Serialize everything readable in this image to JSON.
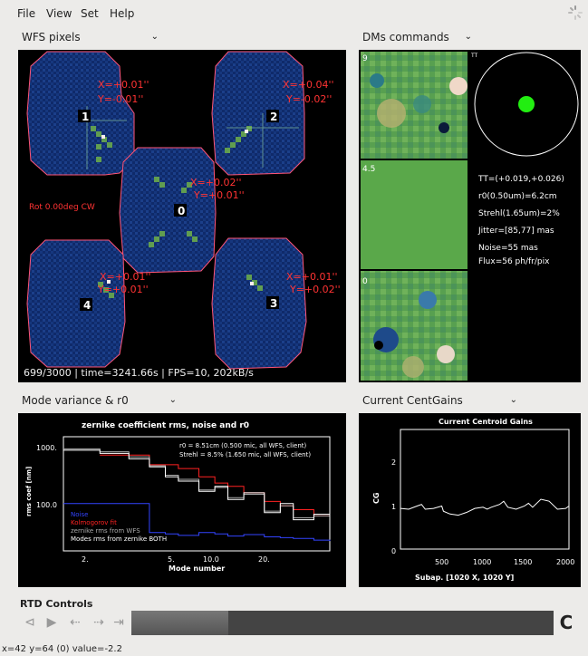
{
  "menu": [
    "File",
    "View",
    "Set",
    "Help"
  ],
  "wfs": {
    "combo": "WFS pixels",
    "spots": [
      {
        "id": "0",
        "x": "X=+0.02''",
        "y": "Y=+0.01''"
      },
      {
        "id": "1",
        "x": "X=+0.01''",
        "y": "Y=-0.01''"
      },
      {
        "id": "2",
        "x": "X=+0.04''",
        "y": "Y=-0.02''"
      },
      {
        "id": "3",
        "x": "X=+0.01''",
        "y": "Y=+0.02''"
      },
      {
        "id": "4",
        "x": "X=+0.01''",
        "y": "Y=+0.01''"
      }
    ],
    "rot": "Rot 0.00deg CW",
    "footer": "699/3000 | time=3241.66s | FPS=10, 202kB/s"
  },
  "dm": {
    "combo": "DMs commands",
    "labels": [
      "9",
      "4.5",
      "0"
    ],
    "tt_label": "TT",
    "stats": [
      "TT=(+0.019,+0.026)",
      "r0(0.50um)=6.2cm",
      "Strehl(1.65um)=2%",
      "Jitter=[85,77] mas",
      "Noise=55 mas",
      "Flux=56 ph/fr/pix"
    ]
  },
  "mode": {
    "combo": "Mode variance & r0",
    "chart_data": {
      "type": "line",
      "title": "zernike coefficient rms, noise and r0",
      "xlabel": "Mode number",
      "ylabel": "rms coef [nm]",
      "x_scale": "log",
      "y_scale": "log",
      "xlim": [
        1.2,
        50
      ],
      "ylim": [
        20,
        1500
      ],
      "xticks": [
        "2.",
        "5.",
        "10.0",
        "20."
      ],
      "yticks": [
        "1000.",
        "100.0"
      ],
      "annotations": [
        "r0 = 8.51cm (0.500 mic, all WFS, client)",
        "Strehl = 8.5% (1.650 mic, all WFS, client)"
      ],
      "legend_placement": "bottom-left",
      "series": [
        {
          "name": "Noise",
          "color": "#3344ff",
          "x": [
            1,
            2,
            3,
            4,
            5,
            6,
            8,
            10,
            12,
            15,
            20,
            25,
            30,
            40,
            50
          ],
          "values": [
            120,
            120,
            120,
            40,
            38,
            36,
            40,
            38,
            35,
            37,
            34,
            33,
            32,
            30,
            29
          ]
        },
        {
          "name": "Kolmogorov fit",
          "color": "#ff2222",
          "x": [
            2,
            3,
            4,
            5,
            6,
            8,
            10,
            12,
            15,
            20,
            25,
            30,
            40,
            50
          ],
          "values": [
            750,
            750,
            520,
            520,
            450,
            330,
            260,
            230,
            180,
            130,
            110,
            95,
            75,
            65
          ]
        },
        {
          "name": "zernike rms from WFS",
          "color": "#aaaaaa",
          "x": [
            1,
            2,
            3,
            4,
            5,
            6,
            8,
            10,
            12,
            15,
            20,
            25,
            30,
            40,
            50
          ],
          "values": [
            950,
            850,
            700,
            500,
            350,
            300,
            200,
            220,
            150,
            170,
            90,
            110,
            70,
            75,
            60
          ]
        },
        {
          "name": "Modes rms from zernike BOTH",
          "color": "#ffffff",
          "x": [
            1,
            2,
            3,
            4,
            5,
            6,
            8,
            10,
            12,
            15,
            20,
            25,
            30,
            40,
            50
          ],
          "values": [
            900,
            800,
            650,
            480,
            330,
            280,
            190,
            230,
            140,
            180,
            85,
            120,
            65,
            80,
            55
          ]
        }
      ]
    }
  },
  "cg": {
    "combo": "Current CentGains",
    "chart_data": {
      "type": "line",
      "title": "Current Centroid Gains",
      "xlabel": "Subap. [1020 X, 1020 Y]",
      "ylabel": "CG",
      "xlim": [
        0,
        2040
      ],
      "ylim": [
        0,
        3
      ],
      "xticks": [
        "500",
        "1000",
        "1500",
        "2000"
      ],
      "yticks": [
        "0",
        "1",
        "2"
      ],
      "series": [
        {
          "name": "",
          "x": [
            0,
            100,
            200,
            255,
            300,
            400,
            500,
            520,
            600,
            700,
            800,
            900,
            1000,
            1050,
            1100,
            1200,
            1250,
            1300,
            1400,
            1500,
            1550,
            1600,
            1700,
            1800,
            1900,
            2000,
            2040
          ],
          "values": [
            1.02,
            1.0,
            1.08,
            1.12,
            1.0,
            1.02,
            1.08,
            0.95,
            0.88,
            0.85,
            0.92,
            1.02,
            1.05,
            1.0,
            1.05,
            1.12,
            1.2,
            1.05,
            1.0,
            1.08,
            1.15,
            1.05,
            1.25,
            1.2,
            1.0,
            1.02,
            1.08
          ]
        }
      ]
    }
  },
  "rtd": {
    "title": "RTD Controls",
    "buttons": [
      "⊲",
      "▶",
      "⇠",
      "⇢",
      "⇥"
    ],
    "slider_fraction": 0.23,
    "refresh": "C"
  },
  "status": "x=42 y=64 (0) value=-2.2",
  "colors": {
    "accent_red": "#ff3333",
    "plot_bg": "#000000",
    "dm_green": "#5aa84a"
  }
}
